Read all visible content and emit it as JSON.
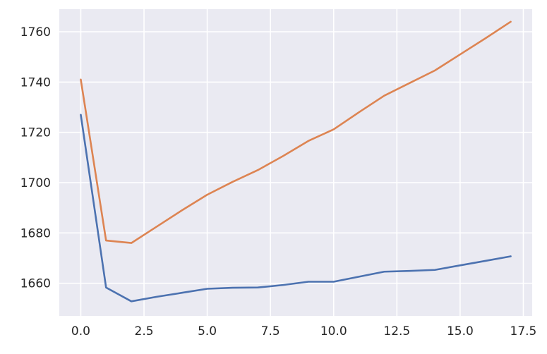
{
  "chart_data": {
    "type": "line",
    "title": "",
    "xlabel": "",
    "ylabel": "",
    "xlim": [
      -0.85,
      17.85
    ],
    "ylim": [
      1647,
      1769
    ],
    "grid": true,
    "legend": "none",
    "colors": {
      "background": "#eaeaf2",
      "grid": "#ffffff"
    },
    "x_ticks": [
      {
        "value": 0,
        "label": "0.0"
      },
      {
        "value": 2.5,
        "label": "2.5"
      },
      {
        "value": 5,
        "label": "5.0"
      },
      {
        "value": 7.5,
        "label": "7.5"
      },
      {
        "value": 10,
        "label": "10.0"
      },
      {
        "value": 12.5,
        "label": "12.5"
      },
      {
        "value": 15,
        "label": "15.0"
      },
      {
        "value": 17.5,
        "label": "17.5"
      }
    ],
    "y_ticks": [
      {
        "value": 1660,
        "label": "1660"
      },
      {
        "value": 1680,
        "label": "1680"
      },
      {
        "value": 1700,
        "label": "1700"
      },
      {
        "value": 1720,
        "label": "1720"
      },
      {
        "value": 1740,
        "label": "1740"
      },
      {
        "value": 1760,
        "label": "1760"
      }
    ],
    "series": [
      {
        "color": "#4c72b0",
        "x": [
          0,
          1,
          2,
          3,
          4,
          5,
          6,
          7,
          8,
          9,
          10,
          11,
          12,
          13,
          14,
          15,
          16,
          17
        ],
        "values": [
          1727.0,
          1658.3,
          1652.8,
          1654.6,
          1656.2,
          1657.8,
          1658.2,
          1658.3,
          1659.3,
          1660.6,
          1660.6,
          1662.6,
          1664.6,
          1664.9,
          1665.3,
          1667.1,
          1668.9,
          1670.7
        ]
      },
      {
        "color": "#dd8452",
        "x": [
          0,
          1,
          2,
          3,
          4,
          5,
          6,
          7,
          8,
          9,
          10,
          11,
          12,
          13,
          14,
          15,
          16,
          17
        ],
        "values": [
          1741.0,
          1677.0,
          1676.0,
          1682.5,
          1689.0,
          1695.2,
          1700.3,
          1705.0,
          1710.6,
          1716.6,
          1721.2,
          1728.0,
          1734.6,
          1739.6,
          1744.6,
          1751.0,
          1757.4,
          1764.0
        ]
      }
    ]
  }
}
